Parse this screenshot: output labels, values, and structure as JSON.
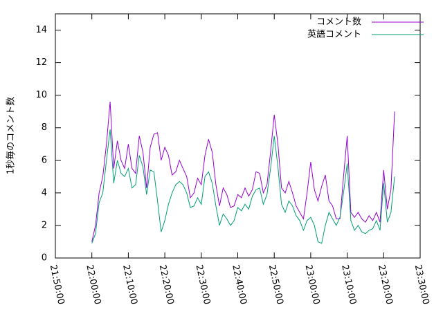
{
  "chart_data": {
    "type": "line",
    "ylabel": "1秒毎のコメント数",
    "x": [
      "22:00:00",
      "22:01:00",
      "22:02:00",
      "22:03:00",
      "22:04:00",
      "22:05:00",
      "22:06:00",
      "22:07:00",
      "22:08:00",
      "22:09:00",
      "22:10:00",
      "22:11:00",
      "22:12:00",
      "22:13:00",
      "22:14:00",
      "22:15:00",
      "22:16:00",
      "22:17:00",
      "22:18:00",
      "22:19:00",
      "22:20:00",
      "22:21:00",
      "22:22:00",
      "22:23:00",
      "22:24:00",
      "22:25:00",
      "22:26:00",
      "22:27:00",
      "22:28:00",
      "22:29:00",
      "22:30:00",
      "22:31:00",
      "22:32:00",
      "22:33:00",
      "22:34:00",
      "22:35:00",
      "22:36:00",
      "22:37:00",
      "22:38:00",
      "22:39:00",
      "22:40:00",
      "22:41:00",
      "22:42:00",
      "22:43:00",
      "22:44:00",
      "22:45:00",
      "22:46:00",
      "22:47:00",
      "22:48:00",
      "22:49:00",
      "22:50:00",
      "22:51:00",
      "22:52:00",
      "22:53:00",
      "22:54:00",
      "22:55:00",
      "22:56:00",
      "22:57:00",
      "22:58:00",
      "22:59:00",
      "23:00:00",
      "23:01:00",
      "23:02:00",
      "23:03:00",
      "23:04:00",
      "23:05:00",
      "23:06:00",
      "23:07:00",
      "23:08:00",
      "23:09:00",
      "23:10:00",
      "23:11:00",
      "23:12:00",
      "23:13:00",
      "23:14:00",
      "23:15:00",
      "23:16:00",
      "23:17:00",
      "23:18:00",
      "23:19:00",
      "23:20:00",
      "23:21:00",
      "23:22:00",
      "23:23:00"
    ],
    "series": [
      {
        "name": "コメント数",
        "color": "#9400d3",
        "values": [
          1.0,
          2.0,
          4.0,
          5.0,
          7.0,
          9.6,
          5.5,
          7.2,
          6.0,
          5.5,
          7.0,
          5.5,
          5.2,
          7.5,
          6.5,
          4.3,
          6.8,
          7.6,
          7.7,
          6.0,
          6.8,
          6.3,
          5.1,
          5.3,
          6.0,
          5.5,
          5.0,
          3.7,
          4.0,
          4.9,
          4.5,
          6.3,
          7.3,
          6.5,
          4.5,
          3.2,
          4.3,
          3.9,
          3.1,
          3.2,
          3.9,
          3.7,
          4.3,
          3.8,
          4.2,
          5.3,
          5.2,
          4.0,
          4.5,
          6.5,
          8.8,
          7.0,
          4.3,
          4.0,
          4.7,
          4.0,
          3.2,
          2.8,
          2.4,
          4.0,
          5.9,
          4.2,
          3.5,
          4.4,
          5.1,
          3.5,
          3.2,
          2.4,
          2.4,
          5.0,
          7.5,
          2.8,
          2.5,
          2.8,
          2.4,
          2.2,
          2.6,
          2.3,
          2.8,
          2.2,
          5.4,
          3.0,
          4.2,
          9.0
        ]
      },
      {
        "name": "英語コメント",
        "color": "#009e73",
        "values": [
          0.9,
          1.5,
          3.4,
          4.0,
          6.0,
          7.9,
          4.6,
          6.0,
          5.2,
          5.0,
          5.5,
          4.3,
          4.5,
          6.3,
          5.6,
          3.9,
          5.4,
          5.3,
          3.5,
          1.6,
          2.3,
          3.3,
          4.0,
          4.5,
          4.7,
          4.5,
          4.0,
          3.1,
          3.2,
          3.7,
          3.3,
          5.0,
          5.3,
          4.6,
          3.2,
          2.0,
          2.7,
          2.4,
          2.0,
          2.3,
          3.1,
          2.9,
          3.3,
          3.0,
          3.8,
          4.2,
          4.3,
          3.3,
          3.9,
          5.5,
          7.5,
          5.6,
          3.3,
          2.8,
          3.5,
          3.2,
          2.6,
          2.3,
          1.7,
          2.3,
          2.5,
          2.0,
          1.0,
          0.9,
          2.0,
          2.8,
          2.4,
          2.0,
          2.5,
          4.0,
          5.8,
          2.3,
          1.7,
          2.0,
          1.6,
          1.5,
          1.7,
          1.8,
          2.3,
          1.7,
          4.6,
          2.2,
          2.8,
          5.0
        ]
      }
    ],
    "xlim": [
      "21:50:00",
      "23:30:00"
    ],
    "xticks": [
      "21:50:00",
      "22:00:00",
      "22:10:00",
      "22:20:00",
      "22:30:00",
      "22:40:00",
      "22:50:00",
      "23:00:00",
      "23:10:00",
      "23:20:00",
      "23:30:00"
    ],
    "ylim": [
      0,
      15
    ],
    "yticks": [
      0,
      2,
      4,
      6,
      8,
      10,
      12,
      14
    ],
    "legend": "top-right"
  }
}
